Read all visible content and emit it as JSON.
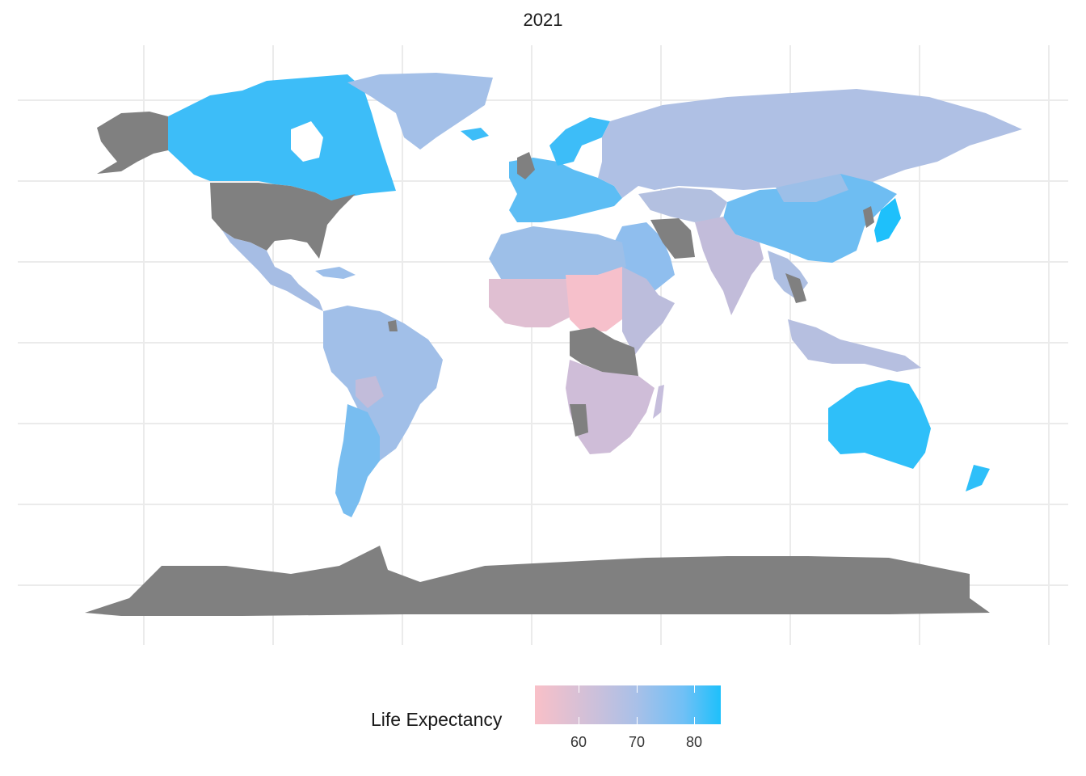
{
  "map": {
    "title": "2021",
    "projection": "equirectangular",
    "colors": {
      "no_data": "#808080",
      "background": "#ffffff",
      "gridline": "#ebebeb",
      "low": "#f9c0c8",
      "mid": "#b0c0e4",
      "high": "#1ec0fb"
    },
    "legend": {
      "title": "Life Expectancy",
      "ticks": [
        "60",
        "70",
        "80"
      ],
      "range": [
        52,
        85
      ]
    }
  }
}
